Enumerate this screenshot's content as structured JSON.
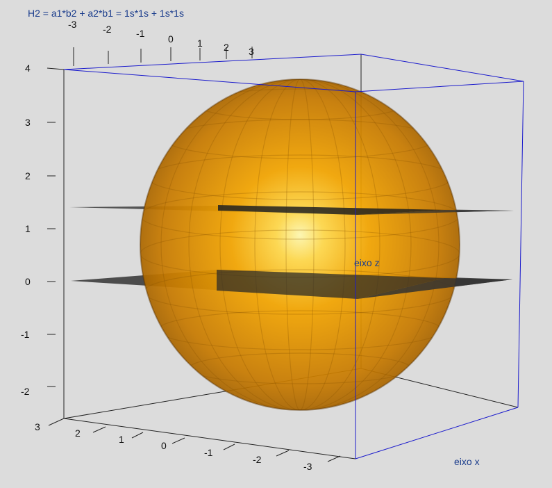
{
  "title": "H2 = a1*b2 + a2*b1 = 1s*1s + 1s*1s",
  "axis_labels": {
    "z": "eixo z",
    "x": "eixo x"
  },
  "ticks": {
    "top": [
      "-3",
      "-2",
      "-1",
      "0",
      "1",
      "2",
      "3"
    ],
    "left": [
      "4",
      "3",
      "2",
      "1",
      "0",
      "-1",
      "-2"
    ],
    "bottom": [
      "3",
      "2",
      "1",
      "0",
      "-1",
      "-2",
      "-3"
    ]
  },
  "colors": {
    "background": "#dcdcdc",
    "sphere": "#f0a000",
    "sphere_highlight": "#fff7a0",
    "plane": "#333333",
    "front_box_edges": "#1a1acc",
    "back_box_edges": "#222222",
    "label_text": "#1a3c8c"
  }
}
